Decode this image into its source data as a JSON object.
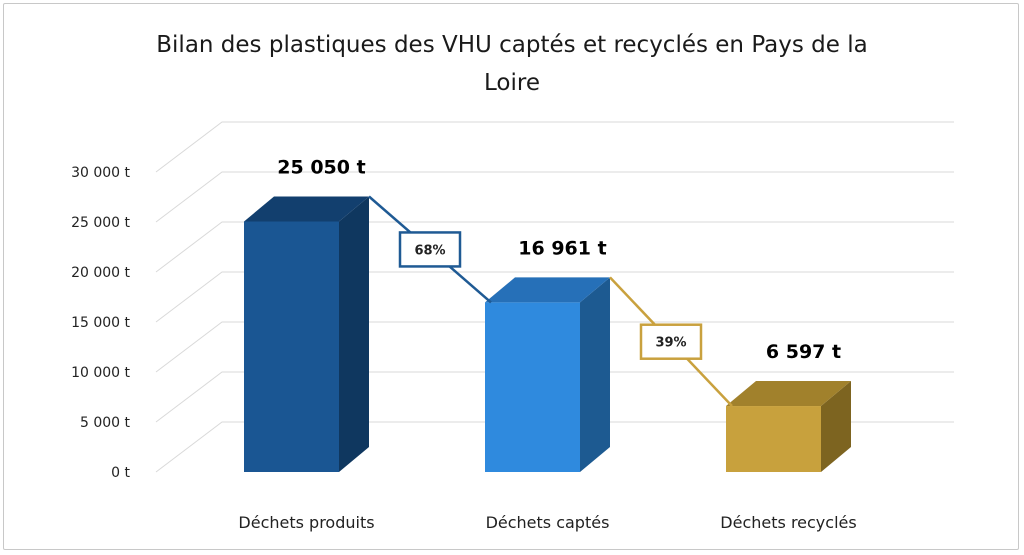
{
  "chart_data": {
    "type": "bar",
    "title_lines": [
      "Bilan des plastiques des VHU captés et recyclés en Pays de la",
      "Loire"
    ],
    "categories": [
      "Déchets produits",
      "Déchets captés",
      "Déchets recyclés"
    ],
    "values": [
      25050,
      16961,
      6597
    ],
    "value_labels": [
      "25 050 t",
      "16 961 t",
      "6 597 t"
    ],
    "ylim": [
      0,
      30000
    ],
    "y_ticks": [
      0,
      5000,
      10000,
      15000,
      20000,
      25000,
      30000
    ],
    "y_tick_labels": [
      "0 t",
      "5 000 t",
      "10 000 t",
      "15 000 t",
      "20 000 t",
      "25 000 t",
      "30 000 t"
    ],
    "grid": true,
    "three_d": true,
    "transitions": [
      {
        "from": 0,
        "to": 1,
        "label": "68%"
      },
      {
        "from": 1,
        "to": 2,
        "label": "39%"
      }
    ],
    "colors": {
      "bars": [
        {
          "front": "#1a5693",
          "side": "#0f375f",
          "top": "#123f6e"
        },
        {
          "front": "#2f8ade",
          "side": "#1d5a91",
          "top": "#2670b8"
        },
        {
          "front": "#c8a13d",
          "side": "#7d6420",
          "top": "#a1812c"
        }
      ],
      "transitions": [
        "#1f5a94",
        "#c9a13e"
      ],
      "grid": "#d9d9d9"
    }
  }
}
